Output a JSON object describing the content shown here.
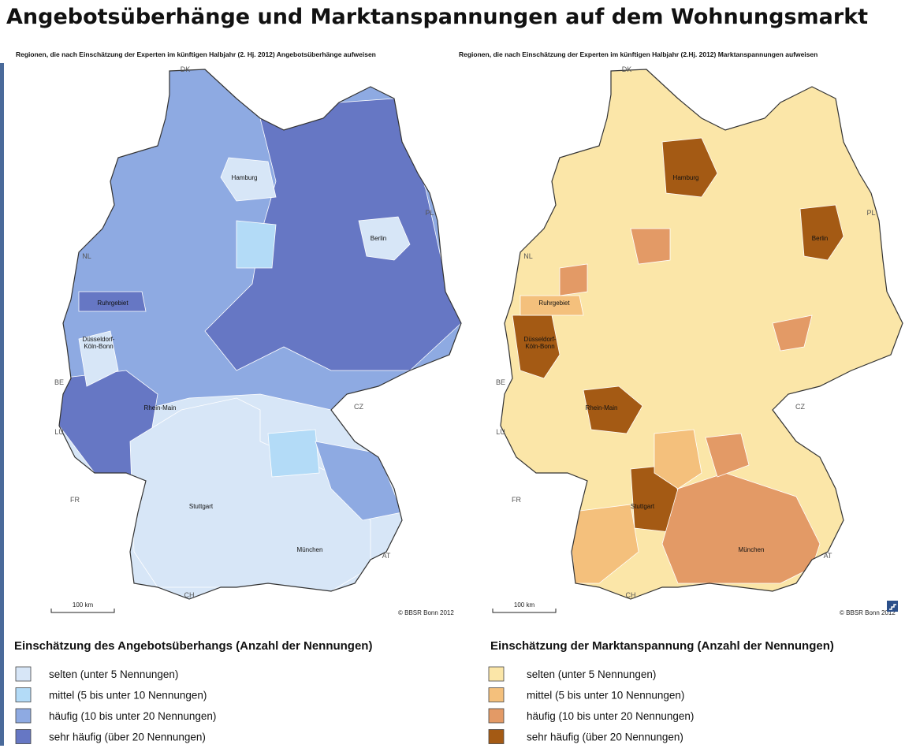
{
  "title": "Angebotsüberhänge und Marktanspannungen auf dem Wohnungsmarkt",
  "maps": [
    {
      "subtitle": "Regionen, die nach Einschätzung der Experten im künftigen Halbjahr (2. Hj. 2012) Angebotsüberhänge aufweisen",
      "labels": [
        "DK",
        "PL",
        "NL",
        "BE",
        "LU",
        "FR",
        "CH",
        "AT",
        "CZ",
        "Hamburg",
        "Berlin",
        "Ruhrgebiet",
        [
          "Düsseldorf-",
          "Köln-Bonn"
        ],
        "Rhein-Main",
        "Stuttgart",
        "München"
      ],
      "scale": "100 km",
      "credit": "© BBSR Bonn 2012",
      "legend_title": "Einschätzung des Angebotsüberhangs (Anzahl der Nennungen)",
      "legend": [
        {
          "label": "selten (unter 5 Nennungen)",
          "color": "#d7e6f7"
        },
        {
          "label": "mittel (5 bis unter 10 Nennungen)",
          "color": "#b3dbf7"
        },
        {
          "label": "häufig (10 bis unter 20 Nennungen)",
          "color": "#8eaae2"
        },
        {
          "label": "sehr häufig (über 20 Nennungen)",
          "color": "#6677c4"
        }
      ]
    },
    {
      "subtitle": "Regionen, die nach Einschätzung der Experten im künftigen Halbjahr (2.Hj. 2012) Marktanspannungen aufweisen",
      "labels": [
        "DK",
        "PL",
        "NL",
        "BE",
        "LU",
        "FR",
        "CH",
        "AT",
        "CZ",
        "Hamburg",
        "Berlin",
        "Ruhrgebiet",
        [
          "Düsseldorf-",
          "Köln-Bonn"
        ],
        "Rhein-Main",
        "Stuttgart",
        "München"
      ],
      "scale": "100 km",
      "credit": "© BBSR Bonn 2012",
      "legend_title": "Einschätzung der Marktanspannung (Anzahl der Nennungen)",
      "legend": [
        {
          "label": "selten (unter 5 Nennungen)",
          "color": "#fbe6a8"
        },
        {
          "label": "mittel (5 bis unter 10 Nennungen)",
          "color": "#f4c07c"
        },
        {
          "label": "häufig (10 bis unter 20 Nennungen)",
          "color": "#e39a66"
        },
        {
          "label": "sehr häufig (über 20 Nennungen)",
          "color": "#a45a14"
        }
      ]
    }
  ]
}
